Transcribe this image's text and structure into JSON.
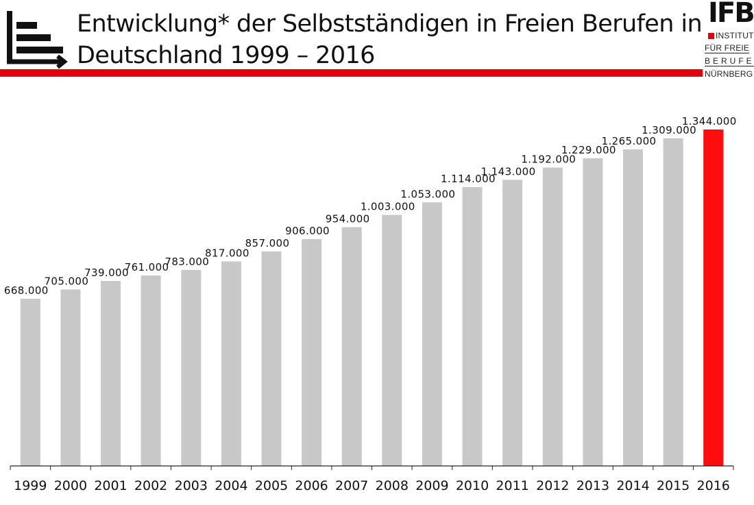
{
  "header": {
    "title_line1": "Entwicklung* der Selbstständigen in Freien Berufen in",
    "title_line2": "Deutschland 1999 – 2016",
    "icon": "bar-chart-icon"
  },
  "logo": {
    "word": "IFB",
    "line1": "INSTITUT",
    "line2": "FÜR FREIE",
    "line3": "BERUFE",
    "line4": "NÜRNBERG"
  },
  "colors": {
    "bar": "#c8c8c8",
    "highlight": "#ff0d0d",
    "accent": "#e3000f",
    "axis": "#222222"
  },
  "chart_data": {
    "type": "bar",
    "categories": [
      "1999",
      "2000",
      "2001",
      "2002",
      "2003",
      "2004",
      "2005",
      "2006",
      "2007",
      "2008",
      "2009",
      "2010",
      "2011",
      "2012",
      "2013",
      "2014",
      "2015",
      "2016"
    ],
    "values": [
      668000,
      705000,
      739000,
      761000,
      783000,
      817000,
      857000,
      906000,
      954000,
      1003000,
      1053000,
      1114000,
      1143000,
      1192000,
      1229000,
      1265000,
      1309000,
      1344000
    ],
    "data_labels": [
      "668.000",
      "705.000",
      "739.000",
      "761.000",
      "783.000",
      "817.000",
      "857.000",
      "906.000",
      "954.000",
      "1.003.000",
      "1.053.000",
      "1.114.000",
      "1.143.000",
      "1.192.000",
      "1.229.000",
      "1.265.000",
      "1.309.000",
      "1.344.000"
    ],
    "highlight_category": "2016",
    "ylim": [
      0,
      1344000
    ],
    "grid": false,
    "xlabel": "",
    "ylabel": ""
  }
}
